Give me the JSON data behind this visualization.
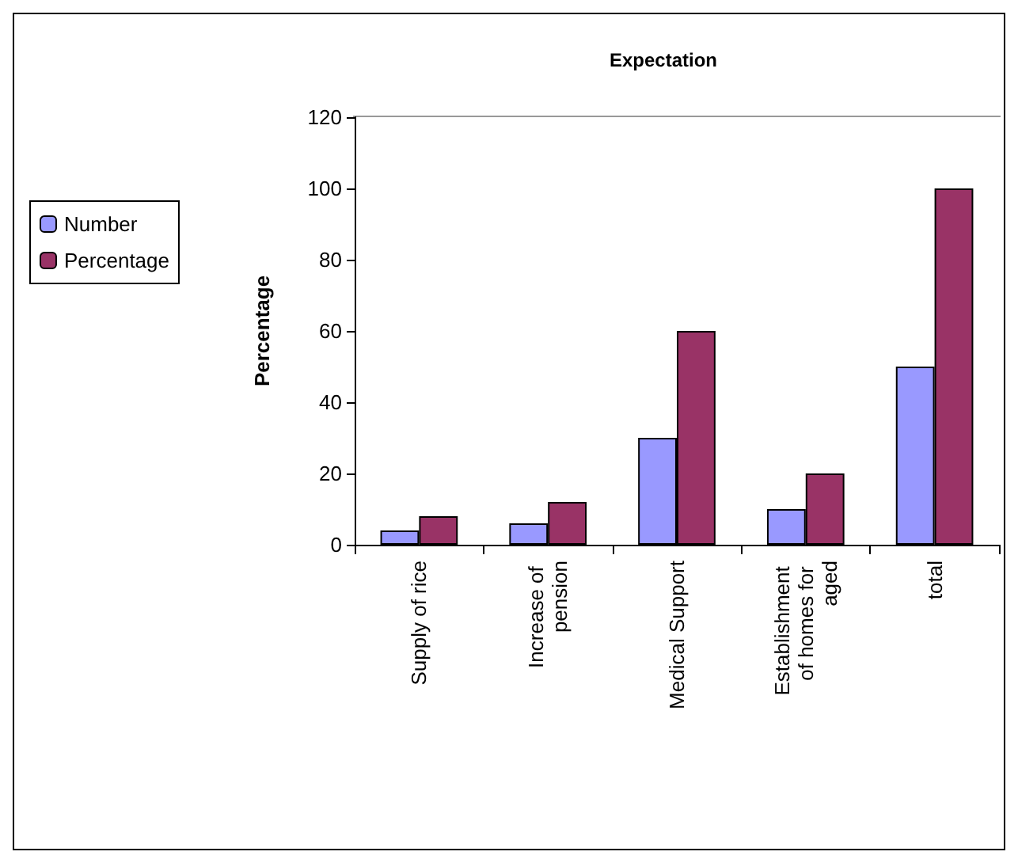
{
  "chart_data": {
    "type": "bar",
    "title": "Expectation",
    "ylabel": "Percentage",
    "categories": [
      "Supply of rice",
      "Increase of pension",
      "Medical Support",
      "Establishment of homes for aged",
      "total"
    ],
    "series": [
      {
        "name": "Number",
        "color": "#9999ff",
        "values": [
          4,
          6,
          30,
          10,
          50
        ]
      },
      {
        "name": "Percentage",
        "color": "#993366",
        "values": [
          8,
          12,
          60,
          20,
          100
        ]
      }
    ],
    "ylim": [
      0,
      120
    ],
    "yticks": [
      0,
      20,
      40,
      60,
      80,
      100,
      120
    ],
    "grid": false,
    "legend": "left"
  }
}
